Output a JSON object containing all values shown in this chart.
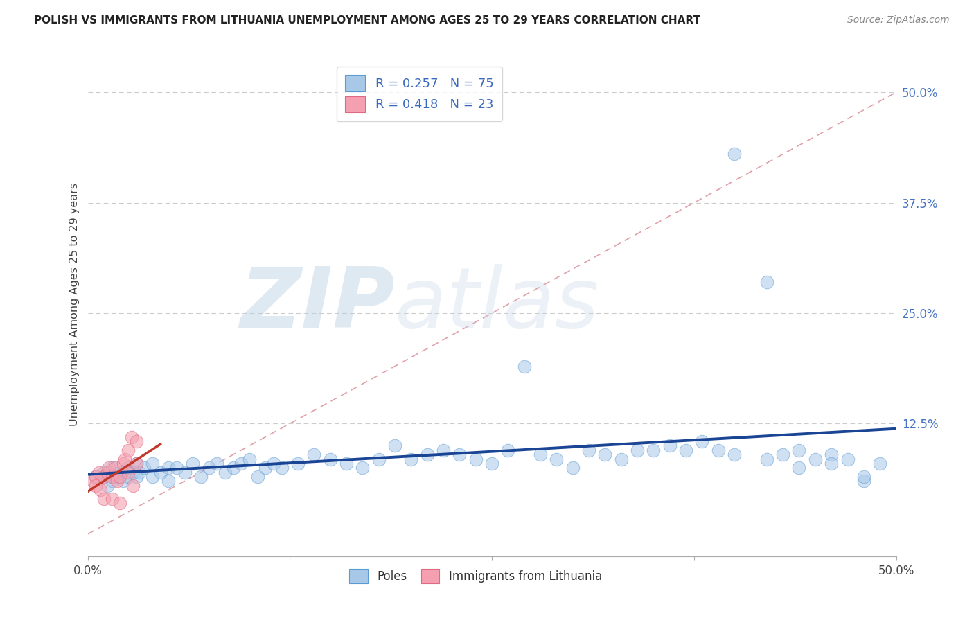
{
  "title": "POLISH VS IMMIGRANTS FROM LITHUANIA UNEMPLOYMENT AMONG AGES 25 TO 29 YEARS CORRELATION CHART",
  "source": "Source: ZipAtlas.com",
  "ylabel": "Unemployment Among Ages 25 to 29 years",
  "xmin": 0.0,
  "xmax": 0.5,
  "ymin": -0.025,
  "ymax": 0.545,
  "poles_color": "#a8c8e8",
  "poles_edge_color": "#5b9bd5",
  "lithuania_color": "#f4a0b0",
  "lithuania_edge_color": "#e06880",
  "poles_line_color": "#1a4494",
  "lithuania_line_color": "#c0392b",
  "diagonal_color": "#e0a0a8",
  "grid_color": "#cccccc",
  "r_poles": 0.257,
  "n_poles": 75,
  "r_lithuania": 0.418,
  "n_lithuania": 23,
  "tick_label_color": "#4472c4",
  "background_color": "#ffffff",
  "title_color": "#222222",
  "source_color": "#888888",
  "poles_x": [
    0.005,
    0.01,
    0.012,
    0.015,
    0.015,
    0.018,
    0.02,
    0.022,
    0.025,
    0.025,
    0.028,
    0.03,
    0.03,
    0.032,
    0.035,
    0.04,
    0.04,
    0.045,
    0.05,
    0.05,
    0.055,
    0.06,
    0.065,
    0.07,
    0.075,
    0.08,
    0.085,
    0.09,
    0.095,
    0.1,
    0.105,
    0.11,
    0.115,
    0.12,
    0.13,
    0.14,
    0.15,
    0.16,
    0.17,
    0.18,
    0.19,
    0.2,
    0.21,
    0.22,
    0.23,
    0.24,
    0.25,
    0.26,
    0.27,
    0.28,
    0.29,
    0.3,
    0.31,
    0.32,
    0.33,
    0.34,
    0.35,
    0.36,
    0.37,
    0.38,
    0.39,
    0.4,
    0.42,
    0.43,
    0.44,
    0.45,
    0.46,
    0.47,
    0.48,
    0.49,
    0.4,
    0.42,
    0.44,
    0.46,
    0.48
  ],
  "poles_y": [
    0.065,
    0.07,
    0.055,
    0.06,
    0.075,
    0.065,
    0.07,
    0.06,
    0.065,
    0.075,
    0.07,
    0.065,
    0.08,
    0.07,
    0.075,
    0.065,
    0.08,
    0.07,
    0.075,
    0.06,
    0.075,
    0.07,
    0.08,
    0.065,
    0.075,
    0.08,
    0.07,
    0.075,
    0.08,
    0.085,
    0.065,
    0.075,
    0.08,
    0.075,
    0.08,
    0.09,
    0.085,
    0.08,
    0.075,
    0.085,
    0.1,
    0.085,
    0.09,
    0.095,
    0.09,
    0.085,
    0.08,
    0.095,
    0.19,
    0.09,
    0.085,
    0.075,
    0.095,
    0.09,
    0.085,
    0.095,
    0.095,
    0.1,
    0.095,
    0.105,
    0.095,
    0.09,
    0.085,
    0.09,
    0.095,
    0.085,
    0.09,
    0.085,
    0.06,
    0.08,
    0.43,
    0.285,
    0.075,
    0.08,
    0.065
  ],
  "lithuania_x": [
    0.003,
    0.005,
    0.005,
    0.007,
    0.008,
    0.01,
    0.01,
    0.012,
    0.013,
    0.015,
    0.015,
    0.017,
    0.018,
    0.02,
    0.02,
    0.022,
    0.023,
    0.025,
    0.025,
    0.027,
    0.028,
    0.03,
    0.03
  ],
  "lithuania_y": [
    0.06,
    0.065,
    0.055,
    0.07,
    0.05,
    0.065,
    0.04,
    0.07,
    0.075,
    0.065,
    0.04,
    0.075,
    0.06,
    0.065,
    0.035,
    0.08,
    0.085,
    0.07,
    0.095,
    0.11,
    0.055,
    0.105,
    0.08
  ]
}
